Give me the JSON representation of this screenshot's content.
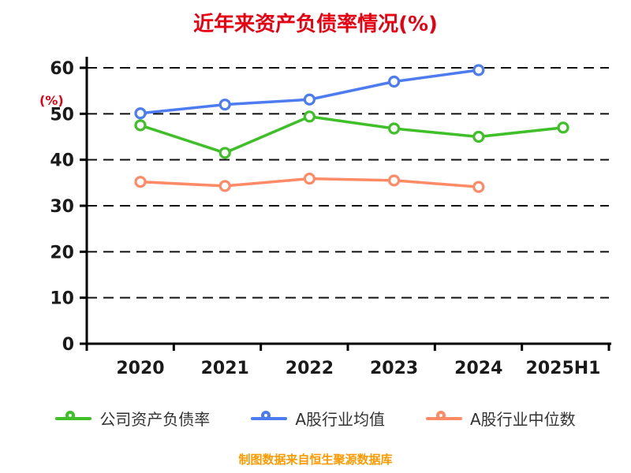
{
  "title": "近年来资产负债率情况(%)",
  "ylabel": "(%)",
  "footer": "制图数据来自恒生聚源数据库",
  "chart_data": {
    "type": "line",
    "categories": [
      "2020",
      "2021",
      "2022",
      "2023",
      "2024",
      "2025H1"
    ],
    "series": [
      {
        "name": "公司资产负债率",
        "color": "#3fbf28",
        "values": [
          47.5,
          41.5,
          49.4,
          46.8,
          45.0,
          47.0
        ]
      },
      {
        "name": "A股行业均值",
        "color": "#4d7bf0",
        "values": [
          50.1,
          52.0,
          53.1,
          57.0,
          59.5,
          null
        ]
      },
      {
        "name": "A股行业中位数",
        "color": "#ff8a65",
        "values": [
          35.2,
          34.3,
          35.9,
          35.5,
          34.1,
          null
        ]
      }
    ],
    "ylim": [
      0,
      60
    ],
    "yticks": [
      0,
      10,
      20,
      30,
      40,
      50,
      60
    ],
    "grid": "dashed-horizontal",
    "legend_position": "bottom"
  },
  "colors": {
    "title": "#e60012",
    "ylabel": "#e60012",
    "axis": "#000000",
    "tick_label": "#1a1a1a",
    "footer": "#ff9900",
    "grid": "#111111"
  }
}
